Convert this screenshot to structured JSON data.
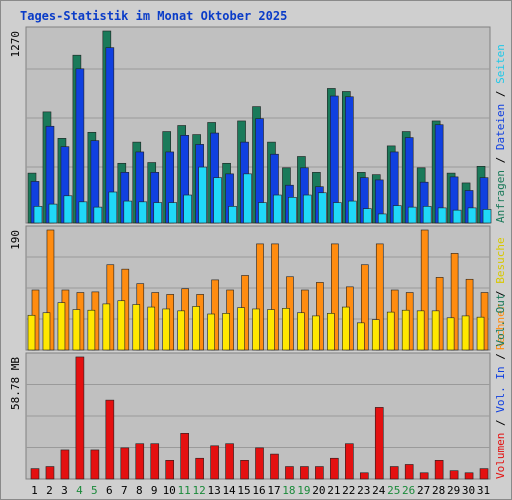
{
  "title": "Tages-Statistik im Monat Oktober 2025",
  "chart_data": {
    "type": "bar",
    "categories": [
      "1",
      "2",
      "3",
      "4",
      "5",
      "6",
      "7",
      "8",
      "9",
      "10",
      "11",
      "12",
      "13",
      "14",
      "15",
      "16",
      "17",
      "18",
      "19",
      "20",
      "21",
      "22",
      "23",
      "24",
      "25",
      "26",
      "27",
      "28",
      "29",
      "30",
      "31"
    ],
    "weekend_days": [
      "4",
      "5",
      "11",
      "12",
      "18",
      "19",
      "25",
      "26"
    ],
    "panels": [
      {
        "scale_label": "1270",
        "ymax": 1270,
        "series": [
          {
            "name": "Anfragen",
            "color": "#1a7a5a",
            "values": [
              330,
              735,
              560,
              1110,
              600,
              1270,
              395,
              535,
              400,
              605,
              645,
              585,
              665,
              395,
              675,
              770,
              535,
              365,
              440,
              335,
              890,
              870,
              335,
              320,
              510,
              605,
              365,
              675,
              330,
              265,
              375
            ]
          },
          {
            "name": "Dateien",
            "color": "#1040e0",
            "values": [
              275,
              640,
              505,
              1020,
              545,
              1160,
              335,
              470,
              335,
              470,
              580,
              520,
              595,
              325,
              535,
              690,
              455,
              250,
              365,
              240,
              840,
              835,
              300,
              285,
              470,
              565,
              270,
              650,
              305,
              215,
              300
            ]
          },
          {
            "name": "Seiten",
            "color": "#20d8f8",
            "values": [
              110,
              125,
              180,
              140,
              105,
              205,
              145,
              140,
              135,
              135,
              185,
              370,
              300,
              110,
              325,
              135,
              185,
              170,
              185,
              200,
              135,
              145,
              95,
              60,
              115,
              105,
              110,
              100,
              85,
              100,
              90
            ]
          }
        ]
      },
      {
        "scale_label": "190",
        "ymax": 190,
        "series": [
          {
            "name": "Rechner",
            "color": "#ff8c10",
            "values": [
              95,
              190,
              95,
              91,
              92,
              135,
              128,
              105,
              91,
              88,
              97,
              88,
              111,
              95,
              118,
              168,
              168,
              116,
              95,
              107,
              168,
              100,
              135,
              168,
              95,
              91,
              190,
              115,
              153,
              112,
              91
            ]
          },
          {
            "name": "Besuche",
            "color": "#ffe800",
            "values": [
              55,
              59,
              75,
              64,
              63,
              73,
              78,
              72,
              68,
              65,
              62,
              69,
              57,
              58,
              67,
              65,
              64,
              66,
              59,
              54,
              58,
              68,
              43,
              48,
              60,
              63,
              62,
              62,
              51,
              54,
              52
            ]
          }
        ]
      },
      {
        "scale_label": "58.78 MB",
        "ymax": 58.78,
        "series": [
          {
            "name": "Volumen",
            "color": "#e41010",
            "values": [
              5,
              6,
              14,
              58.8,
              14,
              38,
              15,
              17,
              17,
              9,
              22,
              10,
              16,
              17,
              9,
              15,
              12,
              6,
              6,
              6,
              10,
              17,
              3,
              34.5,
              6,
              7,
              3,
              9,
              4,
              3,
              5
            ]
          }
        ]
      }
    ],
    "legend_right_top": [
      {
        "label": "Anfragen",
        "color": "#1a7a5a"
      },
      {
        "label": "Dateien",
        "color": "#1040e0"
      },
      {
        "label": "Seiten",
        "color": "#20c8e8"
      }
    ],
    "legend_right_mid": [
      {
        "label": "Rechner",
        "color": "#ff8c10"
      },
      {
        "label": "Besuche",
        "color": "#d8c800"
      }
    ],
    "legend_right_bottom": [
      {
        "label": "Volumen",
        "color": "#e41010"
      },
      {
        "label": "Vol. In",
        "color": "#1040e0"
      },
      {
        "label": "Vol. Out",
        "color": "#1a7a5a"
      }
    ],
    "separator": "/",
    "weekday_color": "#000000",
    "weekend_color": "#1a8a3a"
  }
}
